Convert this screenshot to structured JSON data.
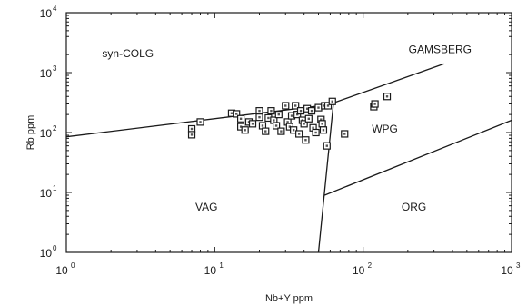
{
  "chart_data": {
    "type": "scatter",
    "xlabel": "Nb+Y ppm",
    "ylabel": "Rb ppm",
    "xscale": "log",
    "yscale": "log",
    "xlim": [
      1,
      1000
    ],
    "ylim": [
      1,
      10000
    ],
    "xticks": [
      {
        "base": "10",
        "exp": "0",
        "value": 1
      },
      {
        "base": "10",
        "exp": "1",
        "value": 10
      },
      {
        "base": "10",
        "exp": "2",
        "value": 100
      },
      {
        "base": "10",
        "exp": "3",
        "value": 1000
      }
    ],
    "yticks": [
      {
        "base": "10",
        "exp": "0",
        "value": 1
      },
      {
        "base": "10",
        "exp": "1",
        "value": 10
      },
      {
        "base": "10",
        "exp": "2",
        "value": 100
      },
      {
        "base": "10",
        "exp": "3",
        "value": 1000
      },
      {
        "base": "10",
        "exp": "4",
        "value": 10000
      }
    ],
    "fields": [
      {
        "label": "syn-COLG",
        "x": 2.6,
        "y": 1800
      },
      {
        "label": "GAMSBERG",
        "x": 330,
        "y": 2100
      },
      {
        "label": "WPG",
        "x": 140,
        "y": 100
      },
      {
        "label": "VAG",
        "x": 8.8,
        "y": 5
      },
      {
        "label": "ORG",
        "x": 220,
        "y": 5
      }
    ],
    "boundaries": [
      {
        "name": "VAG-syn-COLG",
        "points": [
          [
            1,
            85
          ],
          [
            58,
            290
          ]
        ]
      },
      {
        "name": "syn-COLG-WPG",
        "points": [
          [
            58,
            290
          ],
          [
            350,
            1400
          ]
        ]
      },
      {
        "name": "VAG-WPG",
        "points": [
          [
            50,
            1
          ],
          [
            63,
            300
          ]
        ]
      },
      {
        "name": "WPG-ORG",
        "points": [
          [
            55,
            9
          ],
          [
            1000,
            160
          ]
        ]
      }
    ],
    "series": [
      {
        "marker": "open-square",
        "points": [
          [
            7,
            115
          ],
          [
            7,
            92
          ],
          [
            8,
            150
          ],
          [
            13,
            210
          ],
          [
            14,
            205
          ],
          [
            15,
            170
          ],
          [
            15,
            125
          ],
          [
            16,
            110
          ],
          [
            17,
            150
          ],
          [
            18,
            140
          ],
          [
            20,
            230
          ],
          [
            20,
            180
          ],
          [
            21,
            130
          ],
          [
            22,
            105
          ],
          [
            23,
            175
          ],
          [
            24,
            230
          ],
          [
            25,
            160
          ],
          [
            26,
            130
          ],
          [
            27,
            200
          ],
          [
            28,
            105
          ],
          [
            30,
            280
          ],
          [
            31,
            150
          ],
          [
            32,
            125
          ],
          [
            33,
            190
          ],
          [
            34,
            110
          ],
          [
            35,
            280
          ],
          [
            36,
            200
          ],
          [
            37,
            95
          ],
          [
            38,
            230
          ],
          [
            39,
            160
          ],
          [
            40,
            140
          ],
          [
            41,
            75
          ],
          [
            42,
            250
          ],
          [
            43,
            170
          ],
          [
            45,
            230
          ],
          [
            46,
            120
          ],
          [
            48,
            100
          ],
          [
            50,
            260
          ],
          [
            52,
            165
          ],
          [
            53,
            140
          ],
          [
            54,
            110
          ],
          [
            55,
            280
          ],
          [
            57,
            60
          ],
          [
            58,
            280
          ],
          [
            62,
            330
          ],
          [
            75,
            95
          ],
          [
            118,
            270
          ],
          [
            120,
            300
          ],
          [
            145,
            400
          ]
        ]
      }
    ]
  }
}
